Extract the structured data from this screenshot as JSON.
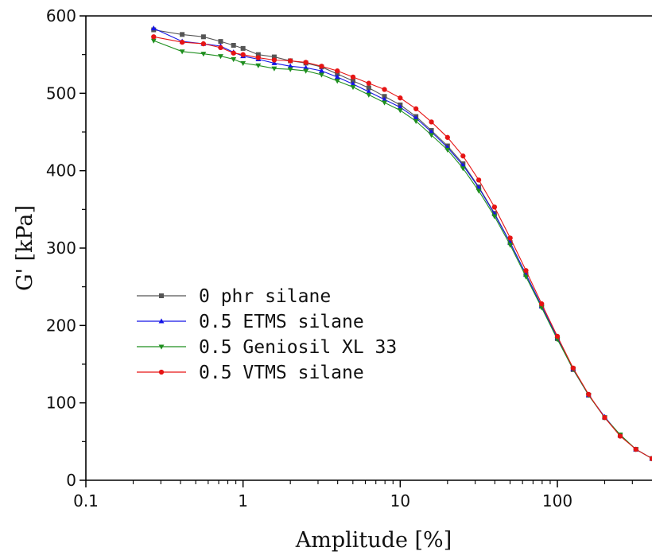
{
  "chart_data": {
    "type": "line",
    "xlabel": "Amplitude [%]",
    "ylabel": "G' [kPa]",
    "xscale": "log",
    "xlim": [
      0.1,
      400
    ],
    "ylim": [
      0,
      600
    ],
    "x_ticks": [
      {
        "value": 0.1,
        "label": "0.1"
      },
      {
        "value": 1,
        "label": "1"
      },
      {
        "value": 10,
        "label": "10"
      },
      {
        "value": 100,
        "label": "100"
      }
    ],
    "y_ticks": [
      {
        "value": 0,
        "label": "0"
      },
      {
        "value": 100,
        "label": "100"
      },
      {
        "value": 200,
        "label": "200"
      },
      {
        "value": 300,
        "label": "300"
      },
      {
        "value": 400,
        "label": "400"
      },
      {
        "value": 500,
        "label": "500"
      },
      {
        "value": 600,
        "label": "600"
      }
    ],
    "legend_position": "left-center",
    "x": [
      0.27,
      0.41,
      0.56,
      0.72,
      0.87,
      1.0,
      1.25,
      1.58,
      2.0,
      2.51,
      3.16,
      3.98,
      5.01,
      6.31,
      7.94,
      10.0,
      12.6,
      15.8,
      20.0,
      25.1,
      31.6,
      39.8,
      50.1,
      63.1,
      79.4,
      100,
      126,
      158,
      200,
      251,
      316,
      400
    ],
    "series": [
      {
        "name": "0 phr silane",
        "color": "#555555",
        "marker": "square",
        "values": [
          582,
          576,
          573,
          567,
          562,
          558,
          550,
          547,
          542,
          539,
          534,
          525,
          516,
          507,
          496,
          485,
          470,
          452,
          432,
          409,
          379,
          345,
          307,
          266,
          225,
          183,
          143,
          110,
          81,
          58,
          40,
          28
        ]
      },
      {
        "name": "0.5 ETMS silane",
        "color": "#1414e6",
        "marker": "triangle-up",
        "values": [
          584,
          567,
          564,
          561,
          553,
          548,
          544,
          539,
          535,
          533,
          529,
          521,
          512,
          502,
          492,
          482,
          468,
          450,
          430,
          407,
          378,
          344,
          307,
          266,
          225,
          184,
          144,
          110,
          82,
          58,
          40,
          28
        ]
      },
      {
        "name": "0.5 Geniosil XL 33",
        "color": "#1f8f1f",
        "marker": "triangle-down",
        "values": [
          568,
          554,
          551,
          548,
          544,
          539,
          536,
          532,
          531,
          529,
          524,
          516,
          508,
          498,
          488,
          478,
          464,
          446,
          427,
          403,
          374,
          341,
          304,
          263,
          223,
          182,
          144,
          110,
          81,
          59,
          40,
          28
        ]
      },
      {
        "name": "0.5 VTMS silane",
        "color": "#e61414",
        "marker": "circle",
        "values": [
          573,
          566,
          564,
          559,
          552,
          550,
          546,
          543,
          542,
          540,
          535,
          529,
          521,
          513,
          505,
          494,
          480,
          463,
          443,
          419,
          388,
          353,
          313,
          271,
          228,
          186,
          145,
          111,
          81,
          57,
          40,
          28
        ]
      }
    ]
  }
}
